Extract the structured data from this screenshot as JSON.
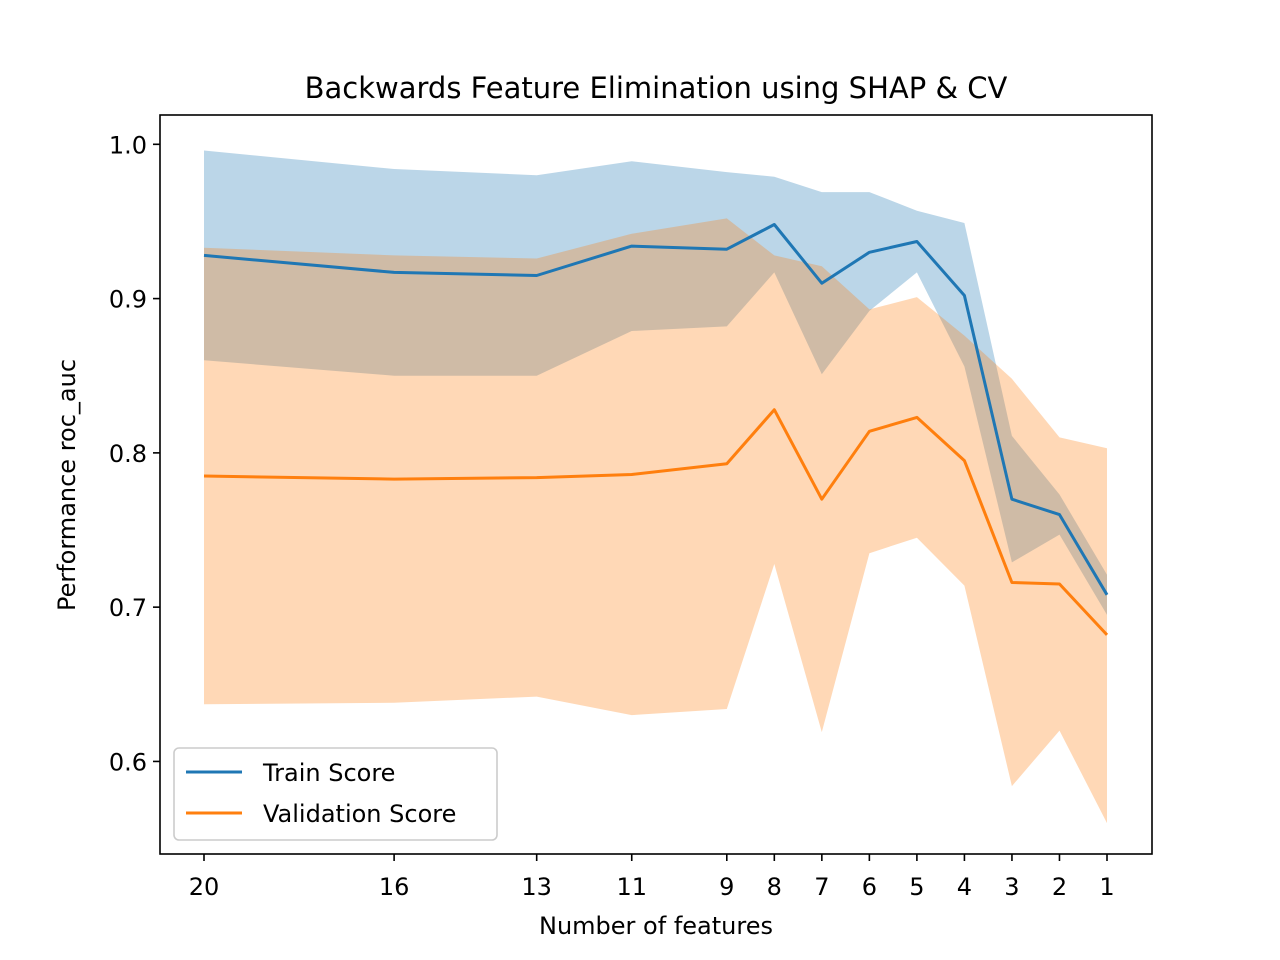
{
  "chart_data": {
    "type": "line",
    "title": "Backwards Feature Elimination using SHAP & CV",
    "xlabel": "Number of features",
    "ylabel": "Performance roc_auc",
    "x_reversed": true,
    "xticks": [
      "20",
      "16",
      "13",
      "11",
      "9",
      "8",
      "7",
      "6",
      "5",
      "4",
      "3",
      "2",
      "1"
    ],
    "yticks": [
      "0.6",
      "0.7",
      "0.8",
      "0.9",
      "1.0"
    ],
    "ylim": [
      0.54,
      1.019
    ],
    "x": [
      20,
      16,
      13,
      11,
      9,
      8,
      7,
      6,
      5,
      4,
      3,
      2,
      1
    ],
    "series": [
      {
        "name": "Train Score",
        "color": "#1f77b4",
        "band_color": "#1f77b4",
        "values": [
          0.928,
          0.917,
          0.915,
          0.934,
          0.932,
          0.948,
          0.91,
          0.93,
          0.937,
          0.902,
          0.77,
          0.76,
          0.708
        ],
        "lower": [
          0.86,
          0.85,
          0.85,
          0.879,
          0.882,
          0.917,
          0.851,
          0.892,
          0.917,
          0.856,
          0.729,
          0.747,
          0.695
        ],
        "upper": [
          0.996,
          0.984,
          0.98,
          0.989,
          0.982,
          0.979,
          0.969,
          0.969,
          0.957,
          0.949,
          0.811,
          0.773,
          0.721
        ]
      },
      {
        "name": "Validation Score",
        "color": "#ff7f0e",
        "band_color": "#ff7f0e",
        "values": [
          0.785,
          0.783,
          0.784,
          0.786,
          0.793,
          0.828,
          0.77,
          0.814,
          0.823,
          0.795,
          0.716,
          0.715,
          0.682
        ],
        "lower": [
          0.637,
          0.638,
          0.642,
          0.63,
          0.634,
          0.728,
          0.619,
          0.735,
          0.745,
          0.714,
          0.584,
          0.62,
          0.56
        ],
        "upper": [
          0.933,
          0.928,
          0.926,
          0.942,
          0.952,
          0.928,
          0.921,
          0.893,
          0.901,
          0.876,
          0.848,
          0.81,
          0.803
        ]
      }
    ],
    "band_opacity": 0.3,
    "grid": false,
    "legend_position": "lower-left"
  }
}
